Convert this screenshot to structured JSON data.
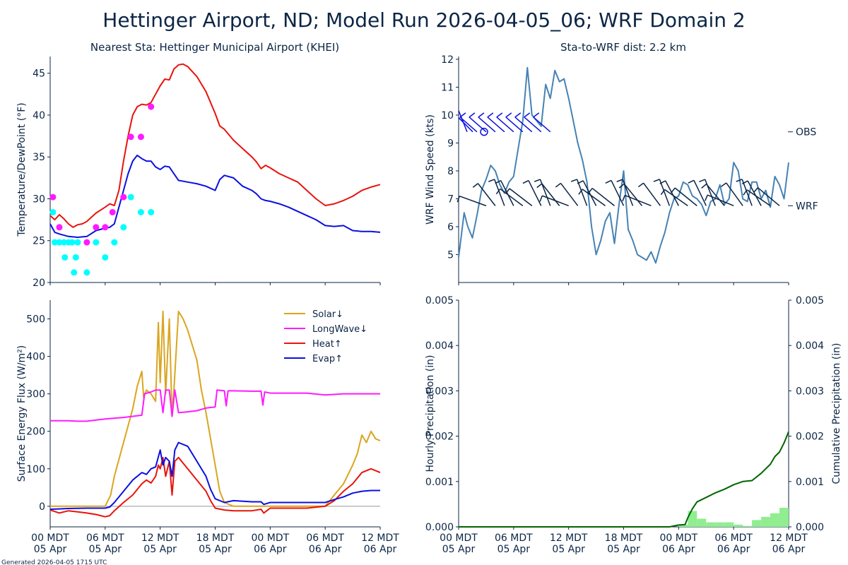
{
  "page": {
    "title": "Hettinger Airport, ND; Model Run 2026-04-05_06; WRF Domain 2",
    "footer": "Generated 2026-04-05 1715 UTC"
  },
  "xaxis": {
    "ticks": [
      "00 MDT",
      "06 MDT",
      "12 MDT",
      "18 MDT",
      "00 MDT",
      "06 MDT",
      "12 MDT"
    ],
    "dates": [
      "05 Apr",
      "05 Apr",
      "05 Apr",
      "05 Apr",
      "06 Apr",
      "06 Apr",
      "06 Apr"
    ]
  },
  "chart_data": [
    {
      "type": "line",
      "title": "Nearest Sta: Hettinger Municipal Airport (KHEI)",
      "ylabel": "Temperature/DewPoint (°F)",
      "xlim": [
        0,
        36
      ],
      "ylim": [
        20,
        47
      ],
      "yticks": [
        "20",
        "25",
        "30",
        "35",
        "40",
        "45"
      ],
      "series": [
        {
          "name": "Temperature",
          "color": "#e8140c",
          "x": [
            0,
            0.5,
            1,
            1.5,
            2,
            2.5,
            3,
            3.5,
            4,
            5,
            6,
            6.5,
            7,
            7.5,
            8,
            8.5,
            9,
            9.5,
            10,
            10.5,
            11,
            11.5,
            12,
            12.5,
            13,
            13.5,
            14,
            14.5,
            15,
            16,
            17,
            18,
            18.5,
            19,
            20,
            21,
            22,
            22.5,
            23,
            23.5,
            24,
            25,
            26,
            27,
            28,
            29,
            30,
            31,
            32,
            33,
            34,
            35,
            36
          ],
          "y": [
            28.0,
            27.5,
            28.1,
            27.6,
            27.0,
            26.6,
            26.9,
            27.0,
            27.3,
            28.3,
            29.0,
            29.4,
            29.2,
            31.0,
            34.5,
            37.5,
            40.0,
            41.0,
            41.3,
            41.2,
            41.5,
            42.5,
            43.5,
            44.3,
            44.2,
            45.5,
            46.0,
            46.1,
            45.8,
            44.6,
            42.8,
            40.2,
            38.7,
            38.3,
            37.0,
            36.0,
            35.0,
            34.4,
            33.6,
            34.0,
            33.7,
            33.0,
            32.5,
            32.0,
            31.0,
            30.0,
            29.2,
            29.4,
            29.8,
            30.3,
            31.0,
            31.4,
            31.7
          ]
        },
        {
          "name": "DewPoint",
          "color": "#0b10e0",
          "x": [
            0,
            0.5,
            1,
            2,
            3,
            4,
            5,
            6,
            6.5,
            7,
            7.5,
            8,
            8.5,
            9,
            9.5,
            10,
            10.5,
            11,
            11.5,
            12,
            12.5,
            13,
            13.5,
            14,
            15,
            16,
            17,
            18,
            18.5,
            19,
            20,
            21,
            22,
            22.5,
            23,
            23.5,
            24,
            25,
            26,
            27,
            28,
            29,
            30,
            31,
            32,
            33,
            34,
            35,
            36
          ],
          "y": [
            27.0,
            26.0,
            25.8,
            25.5,
            25.4,
            25.5,
            26.2,
            26.5,
            26.6,
            27.0,
            29.0,
            31.0,
            33.0,
            34.5,
            35.2,
            34.8,
            34.5,
            34.5,
            33.8,
            33.5,
            33.9,
            33.8,
            33.0,
            32.2,
            32.0,
            31.8,
            31.5,
            31.0,
            32.3,
            32.8,
            32.5,
            31.5,
            31.0,
            30.6,
            30.0,
            29.8,
            29.7,
            29.4,
            29.0,
            28.5,
            28.0,
            27.5,
            26.8,
            26.7,
            26.8,
            26.2,
            26.1,
            26.1,
            26.0
          ]
        },
        {
          "name": "Observed Temperature",
          "color": "#ff1aff",
          "style": "markers",
          "x": [
            0.3,
            1,
            4,
            5,
            6,
            6.8,
            8,
            8.8,
            9.9,
            11
          ],
          "y": [
            30.2,
            26.6,
            24.8,
            26.6,
            26.6,
            28.4,
            30.2,
            37.4,
            37.4,
            41.0
          ]
        },
        {
          "name": "Observed DewPoint",
          "color": "#00ffff",
          "style": "markers",
          "x": [
            0.3,
            0.5,
            1,
            1.5,
            1.6,
            2,
            2.4,
            2.6,
            2.8,
            3,
            4,
            5,
            6,
            7,
            8,
            8.8,
            9.9,
            11
          ],
          "y": [
            28.4,
            24.8,
            24.8,
            24.8,
            23.0,
            24.8,
            24.8,
            21.2,
            23.0,
            24.8,
            21.2,
            24.8,
            23.0,
            24.8,
            26.6,
            30.2,
            28.4,
            28.4
          ]
        }
      ]
    },
    {
      "type": "line",
      "title": "Sta-to-WRF dist: 2.2 km",
      "ylabel": "WRF Wind Speed (kts)",
      "xlim": [
        0,
        36
      ],
      "ylim": [
        4,
        12.1
      ],
      "yticks": [
        "5",
        "6",
        "7",
        "8",
        "9",
        "10",
        "11",
        "12"
      ],
      "barb_labels": {
        "obs": "OBS",
        "wrf": "WRF"
      },
      "barb_levels": {
        "obs": 9.4,
        "wrf": 6.75
      },
      "wrf_barb_hours": [
        3,
        4,
        5,
        6,
        7,
        8,
        9,
        10,
        11,
        12,
        13,
        14,
        15,
        16,
        17,
        18,
        19,
        20,
        21,
        22,
        23,
        24,
        25,
        26,
        27,
        28,
        29,
        30,
        31,
        32,
        33,
        34,
        35
      ],
      "obs_barb_hours": [
        0,
        2,
        3,
        4,
        5,
        6,
        7,
        8,
        9,
        10
      ],
      "series": [
        {
          "name": "WRF Wind Speed",
          "color": "#4682b4",
          "x": [
            0,
            0.6,
            1,
            1.5,
            2,
            2.5,
            3,
            3.5,
            4,
            4.5,
            5,
            5.5,
            6,
            6.5,
            7,
            7.5,
            8,
            8.5,
            9,
            9.5,
            10,
            10.5,
            11,
            11.5,
            12,
            12.5,
            13,
            13.5,
            14,
            14.5,
            15,
            15.5,
            16,
            16.5,
            17,
            17.5,
            18,
            18.5,
            19,
            19.5,
            20,
            20.5,
            21,
            21.5,
            22,
            22.5,
            23,
            23.5,
            24,
            24.5,
            25,
            25.5,
            26,
            26.5,
            27,
            27.5,
            28,
            28.5,
            29,
            29.5,
            30,
            30.5,
            31,
            31.5,
            32,
            32.5,
            33,
            33.5,
            34,
            34.5,
            35,
            35.5,
            36
          ],
          "y": [
            4.9,
            6.5,
            6.0,
            5.6,
            6.4,
            7.3,
            7.7,
            8.2,
            8.0,
            7.5,
            7.2,
            7.6,
            7.8,
            8.8,
            9.8,
            11.7,
            10.0,
            9.8,
            9.6,
            11.1,
            10.6,
            11.6,
            11.2,
            11.3,
            10.6,
            9.8,
            9.0,
            8.4,
            7.6,
            6.0,
            5.0,
            5.5,
            6.2,
            6.5,
            5.4,
            6.8,
            8.0,
            5.9,
            5.5,
            5.0,
            4.9,
            4.8,
            5.1,
            4.7,
            5.3,
            5.8,
            6.5,
            7.0,
            7.1,
            7.6,
            7.5,
            7.1,
            7.0,
            6.8,
            6.4,
            6.9,
            7.0,
            7.5,
            6.8,
            7.0,
            8.3,
            8.0,
            7.0,
            6.9,
            7.6,
            7.6,
            7.0,
            7.3,
            6.7,
            7.8,
            7.5,
            7.0,
            8.3
          ]
        }
      ]
    },
    {
      "type": "line",
      "ylabel": "Surface Energy Flux (W/m²)",
      "xlim": [
        0,
        36
      ],
      "ylim": [
        -55,
        550
      ],
      "yticks": [
        "0",
        "100",
        "200",
        "300",
        "400",
        "500"
      ],
      "series": [
        {
          "name": "Solar↓",
          "color": "#daa520",
          "x": [
            0,
            6,
            6.6,
            7,
            8,
            9,
            9.5,
            10,
            10.2,
            10.5,
            11,
            11.5,
            11.8,
            12,
            12.3,
            12.6,
            13,
            13.3,
            13.5,
            14,
            14.5,
            15,
            16,
            16.5,
            17,
            17.5,
            18,
            18.5,
            19,
            20,
            24,
            30,
            31,
            32,
            33,
            33.5,
            34,
            34.5,
            35,
            35.5,
            36
          ],
          "y": [
            0,
            0,
            30,
            80,
            170,
            260,
            320,
            360,
            290,
            310,
            300,
            280,
            490,
            330,
            520,
            300,
            500,
            240,
            310,
            520,
            500,
            470,
            390,
            310,
            250,
            180,
            110,
            40,
            10,
            0,
            0,
            0,
            30,
            60,
            110,
            140,
            190,
            170,
            200,
            180,
            175
          ]
        },
        {
          "name": "LongWave↓",
          "color": "#ff1aff",
          "x": [
            0,
            2,
            3,
            4,
            5,
            6,
            7,
            8,
            9,
            10,
            10.3,
            11,
            11.5,
            12,
            12.3,
            12.6,
            13,
            13.3,
            13.6,
            14,
            15,
            16,
            17,
            18,
            18.2,
            19,
            19.2,
            19.4,
            20,
            22,
            23,
            23.2,
            23.4,
            24,
            28,
            30,
            32,
            34,
            36
          ],
          "y": [
            228,
            228,
            227,
            227,
            230,
            233,
            235,
            237,
            240,
            243,
            300,
            305,
            310,
            310,
            250,
            310,
            310,
            240,
            310,
            250,
            252,
            255,
            262,
            265,
            310,
            308,
            268,
            308,
            308,
            307,
            307,
            270,
            305,
            302,
            302,
            297,
            300,
            300,
            300
          ]
        },
        {
          "name": "Heat↑",
          "color": "#e8140c",
          "x": [
            0,
            1,
            2,
            3,
            4,
            5,
            6,
            6.5,
            7,
            8,
            9,
            10,
            10.5,
            11,
            11.5,
            11.8,
            12,
            12.3,
            12.6,
            13,
            13.3,
            13.6,
            14,
            15,
            16,
            17,
            17.5,
            18,
            19,
            20,
            22,
            23,
            23.3,
            24,
            28,
            30,
            31,
            32,
            33,
            34,
            35,
            36
          ],
          "y": [
            -10,
            -18,
            -12,
            -15,
            -18,
            -22,
            -28,
            -25,
            -12,
            10,
            30,
            60,
            70,
            62,
            80,
            110,
            100,
            130,
            80,
            120,
            30,
            120,
            130,
            100,
            70,
            40,
            15,
            -5,
            -10,
            -12,
            -12,
            -8,
            -18,
            -5,
            -5,
            0,
            15,
            40,
            60,
            90,
            100,
            90
          ]
        },
        {
          "name": "Evap↑",
          "color": "#0b10e0",
          "x": [
            0,
            2,
            4,
            6,
            6.5,
            7,
            8,
            9,
            10,
            10.5,
            11,
            11.5,
            12,
            12.3,
            12.6,
            13,
            13.3,
            13.6,
            14,
            15,
            16,
            17,
            17.5,
            18,
            19,
            20,
            22,
            23,
            23.3,
            24,
            28,
            30,
            31,
            32,
            33,
            34,
            35,
            36
          ],
          "y": [
            -8,
            -6,
            -5,
            -5,
            -2,
            10,
            40,
            70,
            90,
            85,
            100,
            105,
            150,
            110,
            130,
            120,
            80,
            150,
            170,
            160,
            120,
            80,
            45,
            20,
            10,
            15,
            12,
            12,
            5,
            10,
            10,
            10,
            18,
            25,
            35,
            40,
            42,
            42
          ]
        }
      ]
    },
    {
      "type": "bar",
      "ylabel": "Hourly Precipitation (in)",
      "y2label": "Cumulative Precipitation (in)",
      "xlim": [
        0,
        36
      ],
      "ylim": [
        0,
        0.005
      ],
      "yticks": [
        "0.000",
        "0.001",
        "0.002",
        "0.003",
        "0.004",
        "0.005"
      ],
      "y2ticks": [
        "0.000",
        "0.001",
        "0.002",
        "0.003",
        "0.004",
        "0.005"
      ],
      "bars": {
        "name": "Hourly Precipitation",
        "color": "#90ee90",
        "hours": [
          24,
          25,
          26,
          27,
          28,
          29,
          30,
          31,
          32,
          33,
          34,
          35
        ],
        "values": [
          5e-05,
          0.00035,
          0.00018,
          0.0001,
          0.0001,
          0.0001,
          5e-05,
          2e-05,
          0.00015,
          0.00022,
          0.0003,
          0.00042
        ]
      },
      "series": [
        {
          "name": "Cumulative Precipitation",
          "color": "#006400",
          "x": [
            0,
            23,
            24,
            24.7,
            25,
            25.5,
            26,
            27,
            28,
            29,
            30,
            31,
            32,
            33,
            34,
            34.5,
            35,
            35.5,
            36
          ],
          "y": [
            0,
            0,
            4e-05,
            5e-05,
            0.0002,
            0.0004,
            0.00055,
            0.00065,
            0.00075,
            0.00083,
            0.00093,
            0.001,
            0.00102,
            0.00118,
            0.00138,
            0.00155,
            0.00165,
            0.00185,
            0.0021
          ]
        }
      ]
    }
  ]
}
